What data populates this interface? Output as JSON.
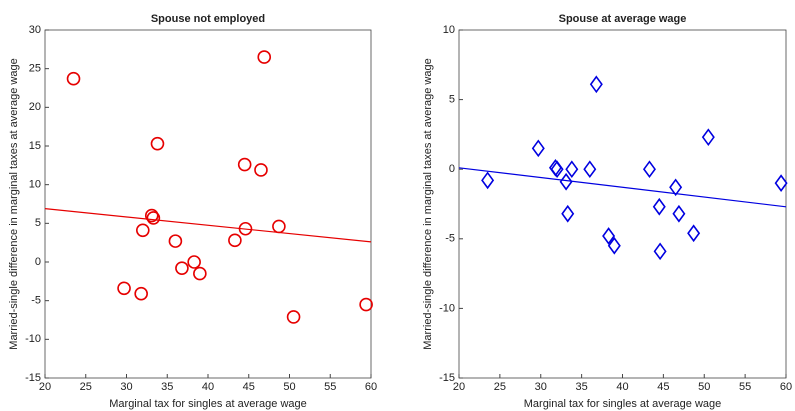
{
  "chart_data": [
    {
      "type": "scatter",
      "title": "Spouse not employed",
      "x_label": "Marginal tax for singles at average wage",
      "y_label": "Married-single difference in marginal taxes at average wage",
      "xlim": [
        20,
        60
      ],
      "xticks": [
        20,
        25,
        30,
        35,
        40,
        45,
        50,
        55,
        60
      ],
      "ylim": [
        -15,
        30
      ],
      "yticks": [
        -15,
        -10,
        -5,
        0,
        5,
        10,
        15,
        20,
        25,
        30
      ],
      "marker": "circle",
      "color": "#e60000",
      "x": [
        23.5,
        46.9,
        33.8,
        44.5,
        46.5,
        33.1,
        33.3,
        32.0,
        44.6,
        48.7,
        36.0,
        43.3,
        38.3,
        36.8,
        39.0,
        29.7,
        31.8,
        59.4,
        50.5
      ],
      "y": [
        23.7,
        26.5,
        15.3,
        12.6,
        11.9,
        6.0,
        5.7,
        4.1,
        4.3,
        4.6,
        2.7,
        2.8,
        0.0,
        -0.8,
        -1.5,
        -3.4,
        -4.1,
        -5.5,
        -7.1
      ],
      "fit_line": {
        "x": [
          20,
          60
        ],
        "y": [
          6.9,
          2.6
        ]
      }
    },
    {
      "type": "scatter",
      "title": "Spouse at average wage",
      "x_label": "Marginal tax for singles at average wage",
      "y_label": "Married-single difference in marginal taxes at average wage",
      "xlim": [
        20,
        60
      ],
      "xticks": [
        20,
        25,
        30,
        35,
        40,
        45,
        50,
        55,
        60
      ],
      "ylim": [
        -15,
        10
      ],
      "yticks": [
        -15,
        -10,
        -5,
        0,
        5,
        10
      ],
      "marker": "diamond",
      "color": "#0000e0",
      "x": [
        23.5,
        29.7,
        31.8,
        32.0,
        33.1,
        33.3,
        33.8,
        36.0,
        36.8,
        38.3,
        39.0,
        43.3,
        44.5,
        44.6,
        46.5,
        46.9,
        48.7,
        50.5,
        59.4
      ],
      "y": [
        -0.8,
        1.5,
        0.1,
        0.0,
        -0.9,
        -3.2,
        0.0,
        0.0,
        6.1,
        -4.8,
        -5.5,
        0.0,
        -2.7,
        -5.9,
        -1.3,
        -3.2,
        -4.6,
        2.3,
        -1.0
      ],
      "fit_line": {
        "x": [
          20,
          60
        ],
        "y": [
          0.1,
          -2.7
        ]
      }
    }
  ]
}
